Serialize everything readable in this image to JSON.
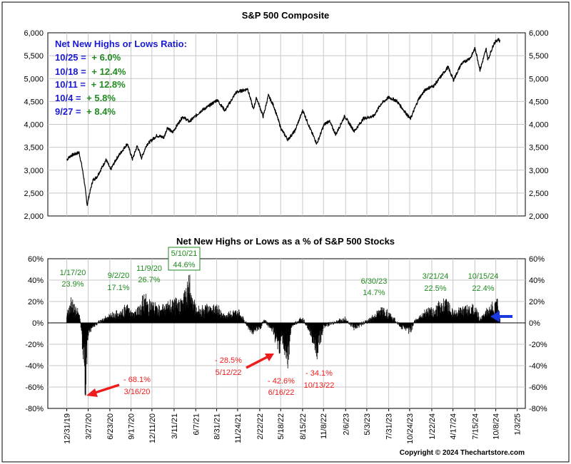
{
  "page": {
    "copyright": "Copyright © 2024 Thechartstore.com"
  },
  "colors": {
    "ann_green": "#1f8a1f",
    "ann_blue": "#1a1ad6",
    "ann_red": "#ee1c1c",
    "arrow_blue": "#1a3ae0",
    "grid": "#c8c8c8",
    "price_line": "#000000",
    "bars": "#000000"
  },
  "chart_data": [
    {
      "type": "line",
      "title": "S&P 500 Composite",
      "ylim": [
        2000,
        6000
      ],
      "y_ticks": [
        "2,000",
        "2,500",
        "3,000",
        "3,500",
        "4,000",
        "4,500",
        "5,000",
        "5,500",
        "6,000"
      ],
      "y_tick_values": [
        2000,
        2500,
        3000,
        3500,
        4000,
        4500,
        5000,
        5500,
        6000
      ],
      "grid": true,
      "ratio_box": {
        "heading": "Net New Highs or Lows Ratio:",
        "rows": [
          {
            "date": "10/25 =",
            "value": "+ 6.0%"
          },
          {
            "date": "10/18 =",
            "value": "+ 12.4%"
          },
          {
            "date": "10/11 =",
            "value": "+ 12.8%"
          },
          {
            "date": "10/4 =",
            "value": "+ 5.8%"
          },
          {
            "date": "9/27 =",
            "value": "+ 8.4%"
          }
        ]
      },
      "series": [
        {
          "x": [
            "2019-12-31",
            "2020-01-17",
            "2020-02-19",
            "2020-03-01",
            "2020-03-10",
            "2020-03-23",
            "2020-04-01",
            "2020-04-15",
            "2020-05-01",
            "2020-06-08",
            "2020-06-26",
            "2020-07-20",
            "2020-09-02",
            "2020-09-23",
            "2020-10-12",
            "2020-10-30",
            "2020-11-20",
            "2020-12-31",
            "2021-01-29",
            "2021-02-12",
            "2021-03-04",
            "2021-04-15",
            "2021-05-12",
            "2021-06-30",
            "2021-07-30",
            "2021-09-02",
            "2021-10-04",
            "2021-11-18",
            "2021-12-31",
            "2022-01-03",
            "2022-01-27",
            "2022-02-09",
            "2022-03-08",
            "2022-03-29",
            "2022-04-20",
            "2022-05-20",
            "2022-06-16",
            "2022-07-15",
            "2022-08-16",
            "2022-09-15",
            "2022-10-12",
            "2022-11-10",
            "2022-12-01",
            "2022-12-28",
            "2023-02-02",
            "2023-03-13",
            "2023-04-20",
            "2023-05-31",
            "2023-06-30",
            "2023-07-31",
            "2023-09-01",
            "2023-10-27",
            "2023-11-30",
            "2023-12-29",
            "2024-01-31",
            "2024-03-28",
            "2024-04-19",
            "2024-05-21",
            "2024-06-28",
            "2024-07-16",
            "2024-08-05",
            "2024-08-30",
            "2024-09-06",
            "2024-09-30",
            "2024-10-18",
            "2024-10-25"
          ],
          "y": [
            3230,
            3320,
            3386,
            3100,
            2800,
            2237,
            2480,
            2780,
            2850,
            3230,
            3010,
            3250,
            3580,
            3240,
            3530,
            3270,
            3560,
            3756,
            3714,
            3935,
            3820,
            4170,
            4060,
            4300,
            4400,
            4535,
            4300,
            4700,
            4766,
            4796,
            4330,
            4580,
            4170,
            4630,
            4400,
            3900,
            3666,
            3860,
            4305,
            3900,
            3577,
            3990,
            4080,
            3780,
            4180,
            3850,
            4130,
            4180,
            4450,
            4590,
            4515,
            4117,
            4560,
            4770,
            4845,
            5254,
            4967,
            5320,
            5460,
            5667,
            5186,
            5648,
            5408,
            5762,
            5864,
            5808
          ]
        }
      ]
    },
    {
      "type": "bar",
      "title": "Net New Highs or Lows as a % of S&P 500 Stocks",
      "ylim": [
        -80,
        60
      ],
      "y_ticks": [
        "-80%",
        "-60%",
        "-40%",
        "-20%",
        "0%",
        "20%",
        "40%",
        "60%"
      ],
      "y_tick_values": [
        -80,
        -60,
        -40,
        -20,
        0,
        20,
        40,
        60
      ],
      "grid": true,
      "x_ticks": [
        "12/31/19",
        "3/27/20",
        "6/23/20",
        "9/17/20",
        "12/11/20",
        "3/11/21",
        "6/7/21",
        "8/31/21",
        "11/24/21",
        "2/22/22",
        "5/18/22",
        "8/15/22",
        "11/8/22",
        "2/6/23",
        "5/3/23",
        "7/31/23",
        "10/24/23",
        "1/22/24",
        "4/17/24",
        "7/15/24",
        "10/8/24",
        "1/3/25"
      ],
      "x_tick_dates": [
        "2019-12-31",
        "2020-03-27",
        "2020-06-23",
        "2020-09-17",
        "2020-12-11",
        "2021-03-11",
        "2021-06-07",
        "2021-08-31",
        "2021-11-24",
        "2022-02-22",
        "2022-05-18",
        "2022-08-15",
        "2022-11-08",
        "2023-02-06",
        "2023-05-03",
        "2023-07-31",
        "2023-10-24",
        "2024-01-22",
        "2024-04-17",
        "2024-07-15",
        "2024-10-08",
        "2025-01-03"
      ],
      "key_points": [
        {
          "date": "2020-01-17",
          "value": 23.9
        },
        {
          "date": "2020-03-16",
          "value": -68.1
        },
        {
          "date": "2020-09-02",
          "value": 17.1
        },
        {
          "date": "2020-11-09",
          "value": 26.7
        },
        {
          "date": "2021-05-10",
          "value": 44.6
        },
        {
          "date": "2022-05-12",
          "value": -28.5
        },
        {
          "date": "2022-06-16",
          "value": -42.6
        },
        {
          "date": "2022-10-13",
          "value": -34.1
        },
        {
          "date": "2023-06-30",
          "value": 14.7
        },
        {
          "date": "2024-03-21",
          "value": 22.5
        },
        {
          "date": "2024-10-15",
          "value": 22.4
        }
      ],
      "profile": {
        "dates": [
          "2019-12-31",
          "2020-01-20",
          "2020-02-21",
          "2020-02-28",
          "2020-03-09",
          "2020-03-16",
          "2020-03-27",
          "2020-04-17",
          "2020-05-29",
          "2020-06-23",
          "2020-08-03",
          "2020-09-02",
          "2020-09-24",
          "2020-10-16",
          "2020-11-09",
          "2020-12-11",
          "2021-01-29",
          "2021-03-11",
          "2021-04-16",
          "2021-05-10",
          "2021-06-07",
          "2021-08-31",
          "2021-10-04",
          "2021-11-24",
          "2021-12-20",
          "2022-01-21",
          "2022-02-22",
          "2022-03-14",
          "2022-04-20",
          "2022-05-12",
          "2022-05-23",
          "2022-06-16",
          "2022-07-01",
          "2022-08-15",
          "2022-09-13",
          "2022-09-30",
          "2022-10-13",
          "2022-11-08",
          "2022-12-15",
          "2023-02-06",
          "2023-03-13",
          "2023-05-03",
          "2023-06-30",
          "2023-07-31",
          "2023-09-15",
          "2023-10-27",
          "2023-11-15",
          "2023-12-28",
          "2024-01-22",
          "2024-03-21",
          "2024-04-17",
          "2024-05-20",
          "2024-07-15",
          "2024-08-05",
          "2024-09-01",
          "2024-10-15",
          "2024-10-25"
        ],
        "values": [
          12,
          22,
          8,
          -8,
          -40,
          -68,
          -12,
          -3,
          4,
          8,
          10,
          17,
          9,
          14,
          26,
          18,
          17,
          20,
          24,
          44,
          15,
          16,
          8,
          12,
          3,
          -10,
          -6,
          3,
          -12,
          -28,
          -16,
          -42,
          -4,
          6,
          -8,
          -22,
          -34,
          -4,
          0,
          4,
          -6,
          2,
          14,
          10,
          -3,
          -10,
          2,
          13,
          13,
          22,
          11,
          14,
          17,
          4,
          13,
          22,
          6
        ]
      },
      "annotations": [
        {
          "lines": [
            "1/17/20",
            "23.9%"
          ],
          "color": "ann_green",
          "boxed": false
        },
        {
          "lines": [
            "9/2/20",
            "17.1%"
          ],
          "color": "ann_green",
          "boxed": false
        },
        {
          "lines": [
            "11/9/20",
            "26.7%"
          ],
          "color": "ann_green",
          "boxed": false
        },
        {
          "lines": [
            "5/10/21",
            "44.6%"
          ],
          "color": "ann_green",
          "boxed": true
        },
        {
          "lines": [
            "6/30/23",
            "14.7%"
          ],
          "color": "ann_green",
          "boxed": false
        },
        {
          "lines": [
            "3/21/24",
            "22.5%"
          ],
          "color": "ann_green",
          "boxed": false
        },
        {
          "lines": [
            "10/15/24",
            "22.4%"
          ],
          "color": "ann_green",
          "boxed": false
        },
        {
          "lines": [
            "- 68.1%",
            "3/16/20"
          ],
          "color": "ann_red",
          "boxed": false
        },
        {
          "lines": [
            "- 28.5%",
            "5/12/22"
          ],
          "color": "ann_red",
          "boxed": false
        },
        {
          "lines": [
            "- 42.6%",
            "6/16/22"
          ],
          "color": "ann_red",
          "boxed": false
        },
        {
          "lines": [
            "- 34.1%",
            "10/13/22"
          ],
          "color": "ann_red",
          "boxed": false
        }
      ]
    }
  ]
}
